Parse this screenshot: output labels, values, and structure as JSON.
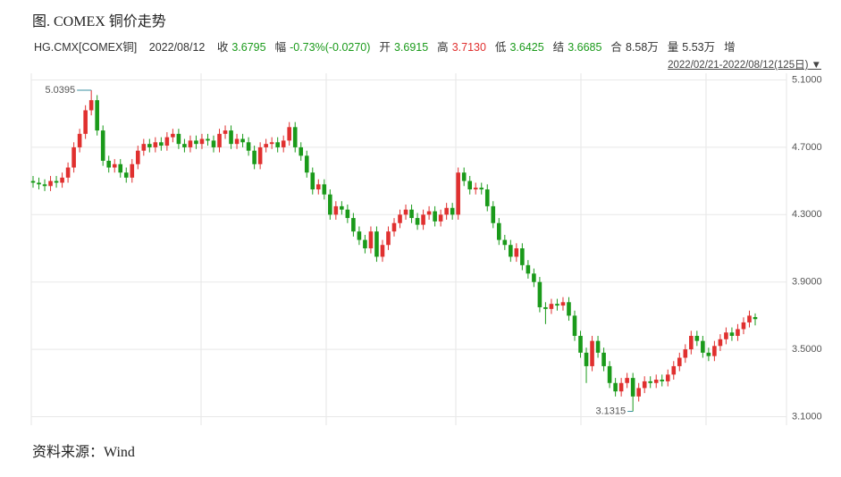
{
  "chart_data": {
    "type": "candlestick",
    "title": "图. COMEX 铜价走势",
    "symbol": "HG.CMX[COMEX铜]",
    "date": "2022/08/12",
    "fields": [
      {
        "label": "收",
        "value": "3.6795",
        "color": "#1a9a1a"
      },
      {
        "label": "幅",
        "value": "-0.73%(-0.0270)",
        "color": "#1a9a1a"
      },
      {
        "label": "开",
        "value": "3.6915",
        "color": "#1a9a1a"
      },
      {
        "label": "高",
        "value": "3.7130",
        "color": "#e0302f"
      },
      {
        "label": "低",
        "value": "3.6425",
        "color": "#1a9a1a"
      },
      {
        "label": "结",
        "value": "3.6685",
        "color": "#1a9a1a"
      },
      {
        "label": "合",
        "value": "8.58万",
        "color": "#333333"
      },
      {
        "label": "量",
        "value": "5.53万",
        "color": "#333333"
      }
    ],
    "extra": "增",
    "range_label": "2022/02/21-2022/08/12(125日)",
    "source": "资料来源：Wind",
    "up_color": "#e0302f",
    "down_color": "#1a9a1a",
    "ylim": [
      3.06,
      5.14
    ],
    "yticks": [
      {
        "value": 5.1,
        "label": "5.1000"
      },
      {
        "value": 4.7,
        "label": "4.7000"
      },
      {
        "value": 4.3,
        "label": "4.3000"
      },
      {
        "value": 3.9,
        "label": "3.9000"
      },
      {
        "value": 3.5,
        "label": "3.5000"
      },
      {
        "value": 3.1,
        "label": "3.1000"
      }
    ],
    "grid": true,
    "open": [
      4.5,
      4.49,
      4.48,
      4.47,
      4.5,
      4.49,
      4.52,
      4.58,
      4.7,
      4.78,
      4.92,
      4.98,
      4.8,
      4.62,
      4.58,
      4.6,
      4.55,
      4.52,
      4.6,
      4.68,
      4.72,
      4.7,
      4.73,
      4.71,
      4.76,
      4.78,
      4.72,
      4.7,
      4.74,
      4.72,
      4.75,
      4.74,
      4.7,
      4.78,
      4.8,
      4.72,
      4.75,
      4.73,
      4.68,
      4.6,
      4.7,
      4.72,
      4.73,
      4.7,
      4.74,
      4.82,
      4.7,
      4.65,
      4.55,
      4.45,
      4.48,
      4.42,
      4.3,
      4.35,
      4.33,
      4.28,
      4.2,
      4.15,
      4.1,
      4.2,
      4.05,
      4.12,
      4.2,
      4.25,
      4.3,
      4.33,
      4.28,
      4.24,
      4.3,
      4.32,
      4.26,
      4.3,
      4.34,
      4.3,
      4.55,
      4.5,
      4.45,
      4.46,
      4.45,
      4.35,
      4.25,
      4.15,
      4.12,
      4.05,
      4.1,
      4.0,
      3.95,
      3.9,
      3.75,
      3.74,
      3.77,
      3.76,
      3.78,
      3.7,
      3.58,
      3.48,
      3.4,
      3.55,
      3.48,
      3.4,
      3.3,
      3.25,
      3.3,
      3.33,
      3.22,
      3.27,
      3.31,
      3.3,
      3.32,
      3.31,
      3.35,
      3.4,
      3.45,
      3.5,
      3.58,
      3.55,
      3.48,
      3.46,
      3.52,
      3.56,
      3.6,
      3.58,
      3.62,
      3.66,
      3.6915
    ],
    "high": [
      4.53,
      4.52,
      4.51,
      4.53,
      4.53,
      4.55,
      4.61,
      4.73,
      4.81,
      4.95,
      5.0395,
      5.01,
      4.83,
      4.65,
      4.63,
      4.63,
      4.58,
      4.63,
      4.71,
      4.75,
      4.75,
      4.76,
      4.76,
      4.79,
      4.81,
      4.81,
      4.75,
      4.77,
      4.77,
      4.78,
      4.78,
      4.77,
      4.81,
      4.83,
      4.83,
      4.78,
      4.78,
      4.76,
      4.71,
      4.73,
      4.75,
      4.76,
      4.76,
      4.77,
      4.85,
      4.85,
      4.73,
      4.68,
      4.58,
      4.51,
      4.51,
      4.45,
      4.38,
      4.38,
      4.36,
      4.31,
      4.23,
      4.18,
      4.23,
      4.23,
      4.15,
      4.23,
      4.28,
      4.33,
      4.36,
      4.36,
      4.31,
      4.33,
      4.35,
      4.35,
      4.33,
      4.37,
      4.37,
      4.58,
      4.58,
      4.53,
      4.49,
      4.49,
      4.48,
      4.38,
      4.28,
      4.18,
      4.15,
      4.13,
      4.13,
      4.03,
      3.98,
      3.93,
      3.78,
      3.8,
      3.8,
      3.81,
      3.81,
      3.73,
      3.61,
      3.51,
      3.58,
      3.58,
      3.51,
      3.43,
      3.33,
      3.33,
      3.36,
      3.36,
      3.3,
      3.34,
      3.34,
      3.35,
      3.35,
      3.38,
      3.43,
      3.48,
      3.53,
      3.61,
      3.61,
      3.58,
      3.51,
      3.55,
      3.59,
      3.63,
      3.63,
      3.65,
      3.69,
      3.73,
      3.713
    ],
    "low": [
      4.46,
      4.45,
      4.44,
      4.44,
      4.46,
      4.46,
      4.49,
      4.55,
      4.67,
      4.75,
      4.89,
      4.77,
      4.59,
      4.55,
      4.55,
      4.52,
      4.49,
      4.49,
      4.57,
      4.65,
      4.67,
      4.67,
      4.68,
      4.68,
      4.73,
      4.69,
      4.67,
      4.67,
      4.69,
      4.69,
      4.71,
      4.67,
      4.67,
      4.75,
      4.69,
      4.69,
      4.7,
      4.65,
      4.57,
      4.57,
      4.67,
      4.69,
      4.67,
      4.67,
      4.71,
      4.67,
      4.62,
      4.52,
      4.42,
      4.42,
      4.39,
      4.27,
      4.27,
      4.3,
      4.25,
      4.17,
      4.12,
      4.07,
      4.07,
      4.02,
      4.02,
      4.09,
      4.17,
      4.22,
      4.27,
      4.25,
      4.21,
      4.21,
      4.27,
      4.23,
      4.23,
      4.27,
      4.27,
      4.27,
      4.47,
      4.42,
      4.42,
      4.42,
      4.32,
      4.22,
      4.12,
      4.09,
      4.02,
      4.02,
      3.97,
      3.92,
      3.87,
      3.72,
      3.65,
      3.71,
      3.73,
      3.73,
      3.67,
      3.55,
      3.45,
      3.3,
      3.37,
      3.45,
      3.37,
      3.27,
      3.22,
      3.22,
      3.27,
      3.1315,
      3.19,
      3.24,
      3.27,
      3.27,
      3.28,
      3.28,
      3.32,
      3.37,
      3.42,
      3.47,
      3.52,
      3.45,
      3.43,
      3.43,
      3.49,
      3.53,
      3.55,
      3.55,
      3.59,
      3.63,
      3.6425
    ],
    "close": [
      4.49,
      4.48,
      4.47,
      4.5,
      4.49,
      4.52,
      4.58,
      4.7,
      4.78,
      4.92,
      4.98,
      4.8,
      4.62,
      4.58,
      4.6,
      4.55,
      4.52,
      4.6,
      4.68,
      4.72,
      4.7,
      4.73,
      4.71,
      4.76,
      4.78,
      4.72,
      4.7,
      4.74,
      4.72,
      4.75,
      4.74,
      4.7,
      4.78,
      4.8,
      4.72,
      4.75,
      4.73,
      4.68,
      4.6,
      4.7,
      4.72,
      4.73,
      4.7,
      4.74,
      4.82,
      4.7,
      4.65,
      4.55,
      4.45,
      4.48,
      4.42,
      4.3,
      4.35,
      4.33,
      4.28,
      4.2,
      4.15,
      4.1,
      4.2,
      4.05,
      4.12,
      4.2,
      4.25,
      4.3,
      4.33,
      4.28,
      4.24,
      4.3,
      4.32,
      4.26,
      4.3,
      4.34,
      4.3,
      4.55,
      4.5,
      4.45,
      4.46,
      4.45,
      4.35,
      4.25,
      4.15,
      4.12,
      4.05,
      4.1,
      4.0,
      3.95,
      3.9,
      3.75,
      3.74,
      3.77,
      3.76,
      3.78,
      3.7,
      3.58,
      3.48,
      3.4,
      3.55,
      3.48,
      3.4,
      3.3,
      3.25,
      3.3,
      3.33,
      3.22,
      3.27,
      3.31,
      3.3,
      3.32,
      3.31,
      3.35,
      3.4,
      3.45,
      3.5,
      3.58,
      3.55,
      3.48,
      3.46,
      3.52,
      3.56,
      3.6,
      3.58,
      3.62,
      3.66,
      3.7,
      3.6795
    ]
  }
}
